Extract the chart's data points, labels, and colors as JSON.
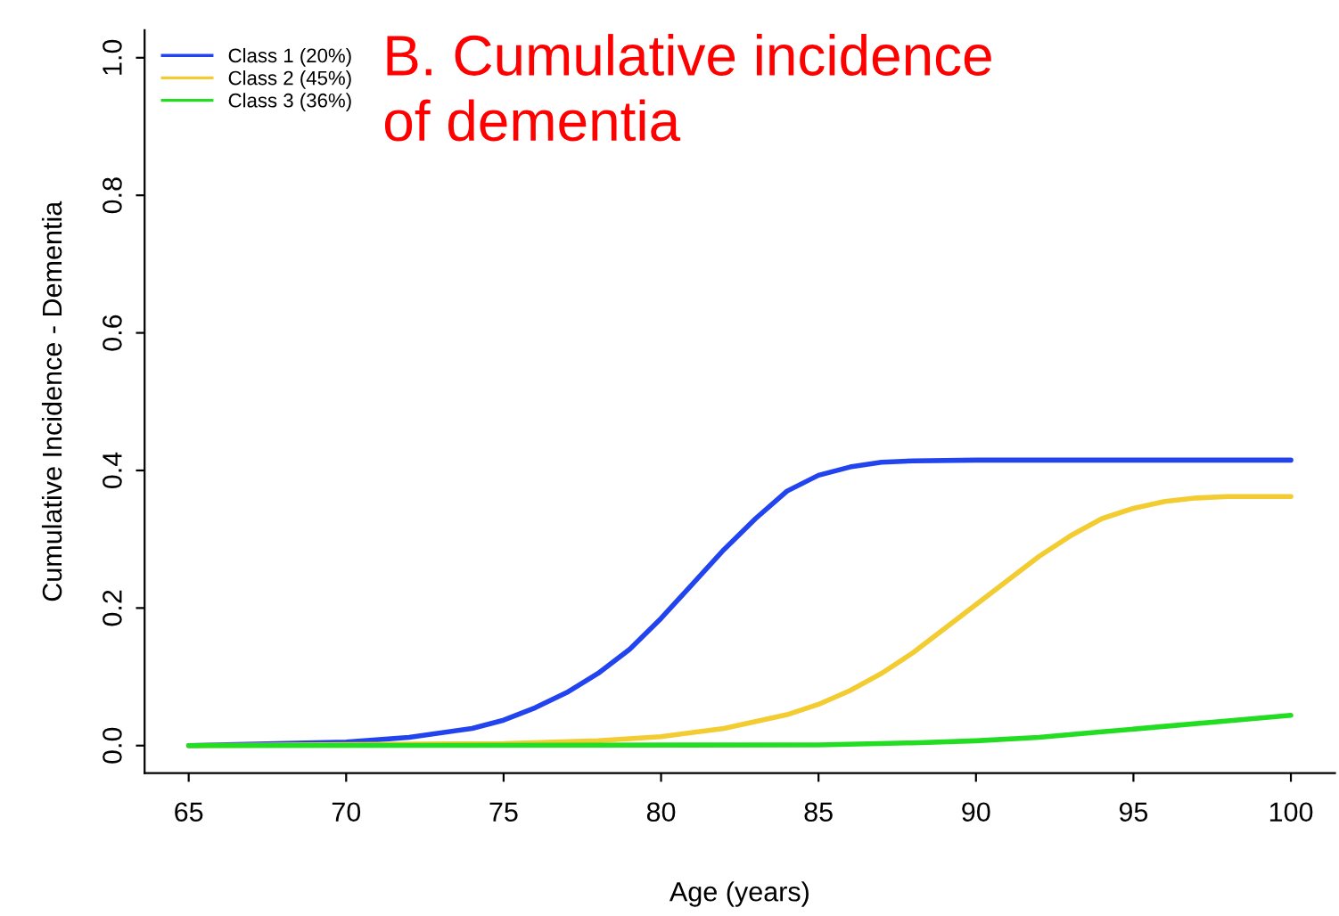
{
  "chart_data": {
    "type": "line",
    "title": "B. Cumulative incidence\nof dementia",
    "xlabel": "Age (years)",
    "ylabel": "Cumulative Incidence - Dementia",
    "xlim": [
      63.6,
      101.4
    ],
    "xticks": [
      65,
      70,
      75,
      80,
      85,
      90,
      95,
      100
    ],
    "ylim": [
      -0.04,
      1.04
    ],
    "yticks": [
      {
        "value": 0,
        "label": "0.0"
      },
      0.2,
      0.4,
      0.6,
      0.8,
      {
        "value": 1,
        "label": "1.0"
      }
    ],
    "grid": false,
    "legend": "top left",
    "marker": "none",
    "line_style": "solid",
    "series": [
      {
        "name": "Class 1 (20%)",
        "color": "#2244ee",
        "x": [
          65,
          70,
          72,
          74,
          75,
          76,
          77,
          78,
          79,
          80,
          81,
          82,
          83,
          84,
          85,
          86,
          87,
          88,
          90,
          100
        ],
        "values": [
          0,
          0.005,
          0.012,
          0.025,
          0.037,
          0.055,
          0.077,
          0.105,
          0.14,
          0.185,
          0.235,
          0.285,
          0.33,
          0.37,
          0.393,
          0.405,
          0.412,
          0.414,
          0.415,
          0.415
        ]
      },
      {
        "name": "Class 2 (45%)",
        "color": "#f2cc30",
        "x": [
          65,
          75,
          78,
          80,
          82,
          84,
          85,
          86,
          87,
          88,
          89,
          90,
          91,
          92,
          93,
          94,
          95,
          96,
          97,
          98,
          100
        ],
        "values": [
          0,
          0.003,
          0.007,
          0.013,
          0.025,
          0.045,
          0.06,
          0.08,
          0.105,
          0.135,
          0.17,
          0.205,
          0.24,
          0.275,
          0.305,
          0.33,
          0.345,
          0.355,
          0.36,
          0.362,
          0.362
        ]
      },
      {
        "name": "Class 3 (36%)",
        "color": "#22dd22",
        "x": [
          65,
          85,
          88,
          90,
          92,
          94,
          96,
          98,
          100
        ],
        "values": [
          0,
          0.001,
          0.004,
          0.007,
          0.012,
          0.02,
          0.028,
          0.036,
          0.044
        ]
      }
    ]
  }
}
